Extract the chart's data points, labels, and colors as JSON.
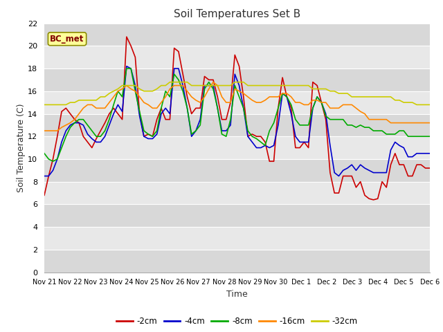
{
  "title": "Soil Temperatures Set B",
  "xlabel": "Time",
  "ylabel": "Soil Temperature (C)",
  "annotation": "BC_met",
  "ylim": [
    0,
    22
  ],
  "yticks": [
    0,
    2,
    4,
    6,
    8,
    10,
    12,
    14,
    16,
    18,
    20,
    22
  ],
  "x_labels": [
    "Nov 21",
    "Nov 22",
    "Nov 23",
    "Nov 24",
    "Nov 25",
    "Nov 26",
    "Nov 27",
    "Nov 28",
    "Nov 29",
    "Nov 30",
    "Dec 1",
    "Dec 2",
    "Dec 3",
    "Dec 4",
    "Dec 5",
    "Dec 6"
  ],
  "series": {
    "-2cm": {
      "color": "#cc0000",
      "values": [
        6.8,
        8.5,
        10.0,
        12.0,
        14.2,
        14.5,
        14.0,
        13.5,
        13.2,
        12.0,
        11.5,
        11.0,
        11.8,
        12.5,
        13.2,
        14.0,
        14.5,
        14.0,
        13.5,
        20.8,
        20.0,
        19.0,
        14.0,
        12.0,
        12.2,
        12.0,
        13.5,
        14.5,
        13.5,
        13.5,
        19.8,
        19.5,
        17.5,
        15.5,
        14.0,
        14.5,
        14.5,
        17.3,
        17.0,
        17.0,
        15.5,
        13.5,
        13.5,
        15.0,
        19.2,
        18.2,
        15.5,
        12.0,
        12.2,
        12.0,
        12.0,
        11.5,
        9.8,
        9.8,
        14.5,
        17.2,
        15.5,
        14.5,
        11.0,
        11.0,
        11.5,
        11.0,
        16.8,
        16.5,
        15.0,
        13.5,
        8.8,
        7.0,
        7.0,
        8.5,
        8.5,
        8.5,
        7.5,
        8.0,
        6.8,
        6.5,
        6.4,
        6.5,
        8.0,
        7.5,
        9.5,
        10.5,
        9.5,
        9.5,
        8.5,
        8.5,
        9.5,
        9.5,
        9.2,
        9.2
      ]
    },
    "-4cm": {
      "color": "#0000cc",
      "values": [
        8.5,
        8.5,
        9.0,
        10.0,
        11.5,
        12.5,
        13.0,
        13.2,
        13.2,
        13.0,
        12.2,
        11.8,
        11.5,
        11.5,
        12.0,
        13.0,
        14.0,
        14.8,
        14.2,
        18.2,
        18.0,
        16.5,
        13.8,
        12.0,
        11.8,
        11.8,
        12.2,
        14.0,
        14.5,
        14.0,
        18.0,
        18.0,
        16.5,
        14.5,
        12.0,
        12.5,
        13.5,
        16.5,
        16.5,
        16.5,
        14.5,
        12.5,
        12.5,
        13.0,
        17.5,
        16.5,
        14.5,
        12.0,
        11.5,
        11.0,
        11.0,
        11.2,
        11.0,
        11.2,
        13.0,
        15.8,
        15.5,
        14.0,
        12.0,
        11.5,
        11.5,
        11.5,
        14.5,
        15.5,
        15.0,
        14.0,
        11.2,
        8.8,
        8.5,
        9.0,
        9.2,
        9.5,
        9.0,
        9.5,
        9.2,
        9.0,
        8.8,
        8.8,
        8.8,
        8.8,
        10.8,
        11.5,
        11.2,
        11.0,
        10.2,
        10.2,
        10.5,
        10.5,
        10.5,
        10.5
      ]
    },
    "-8cm": {
      "color": "#00aa00",
      "values": [
        10.5,
        10.0,
        9.8,
        10.0,
        11.0,
        12.0,
        12.8,
        13.2,
        13.5,
        13.5,
        13.0,
        12.5,
        12.0,
        12.0,
        12.5,
        13.5,
        14.8,
        16.0,
        15.5,
        18.0,
        18.0,
        16.0,
        14.2,
        12.5,
        12.2,
        12.0,
        12.5,
        14.5,
        16.0,
        15.5,
        17.5,
        17.0,
        16.0,
        14.5,
        12.2,
        12.5,
        13.0,
        16.2,
        16.8,
        16.2,
        14.5,
        12.2,
        12.0,
        13.5,
        16.5,
        15.5,
        14.5,
        12.5,
        12.0,
        11.8,
        11.5,
        11.2,
        12.5,
        13.2,
        14.5,
        15.8,
        15.5,
        14.8,
        13.5,
        13.0,
        13.0,
        13.0,
        14.5,
        15.5,
        15.0,
        13.8,
        13.5,
        13.5,
        13.5,
        13.5,
        13.0,
        13.0,
        12.8,
        13.0,
        12.8,
        12.8,
        12.5,
        12.5,
        12.5,
        12.2,
        12.2,
        12.2,
        12.5,
        12.5,
        12.0,
        12.0,
        12.0,
        12.0,
        12.0,
        12.0
      ]
    },
    "-16cm": {
      "color": "#ff8800",
      "values": [
        12.5,
        12.5,
        12.5,
        12.5,
        12.8,
        13.0,
        13.2,
        13.5,
        14.0,
        14.5,
        14.8,
        14.8,
        14.5,
        14.5,
        14.5,
        15.0,
        15.5,
        16.0,
        16.2,
        16.5,
        16.2,
        16.0,
        15.5,
        15.0,
        14.8,
        14.5,
        14.5,
        15.0,
        15.5,
        16.2,
        16.5,
        16.5,
        16.5,
        16.0,
        15.5,
        15.2,
        15.0,
        15.5,
        16.2,
        16.8,
        16.5,
        15.5,
        15.0,
        15.0,
        16.2,
        16.0,
        15.8,
        15.5,
        15.2,
        15.0,
        15.0,
        15.2,
        15.5,
        15.5,
        15.5,
        15.8,
        15.8,
        15.5,
        15.0,
        15.0,
        14.8,
        14.8,
        15.2,
        15.2,
        15.0,
        15.0,
        14.5,
        14.5,
        14.5,
        14.8,
        14.8,
        14.8,
        14.5,
        14.2,
        14.0,
        13.5,
        13.5,
        13.5,
        13.5,
        13.5,
        13.2,
        13.2,
        13.2,
        13.2,
        13.2,
        13.2,
        13.2,
        13.2,
        13.2,
        13.2
      ]
    },
    "-32cm": {
      "color": "#cccc00",
      "values": [
        14.8,
        14.8,
        14.8,
        14.8,
        14.8,
        14.8,
        15.0,
        15.0,
        15.2,
        15.2,
        15.2,
        15.2,
        15.2,
        15.5,
        15.5,
        15.8,
        16.0,
        16.2,
        16.5,
        16.5,
        16.5,
        16.5,
        16.2,
        16.0,
        16.0,
        16.0,
        16.2,
        16.5,
        16.5,
        16.8,
        16.8,
        16.8,
        16.8,
        16.8,
        16.5,
        16.5,
        16.5,
        16.5,
        16.5,
        16.5,
        16.5,
        16.5,
        16.5,
        16.5,
        16.8,
        16.8,
        16.8,
        16.5,
        16.5,
        16.5,
        16.5,
        16.5,
        16.5,
        16.5,
        16.5,
        16.5,
        16.5,
        16.5,
        16.5,
        16.5,
        16.5,
        16.5,
        16.2,
        16.2,
        16.2,
        16.2,
        16.0,
        16.0,
        15.8,
        15.8,
        15.8,
        15.5,
        15.5,
        15.5,
        15.5,
        15.5,
        15.5,
        15.5,
        15.5,
        15.5,
        15.5,
        15.2,
        15.2,
        15.0,
        15.0,
        15.0,
        14.8,
        14.8,
        14.8,
        14.8
      ]
    }
  },
  "fig_bg_color": "#ffffff",
  "plot_bg_color": "#ffffff",
  "band_colors": [
    "#e8e8e8",
    "#d0d0d0"
  ],
  "grid_color": "#ffffff",
  "annotation_bg": "#ffff99",
  "annotation_border": "#8b8b00",
  "annotation_text_color": "#800000"
}
